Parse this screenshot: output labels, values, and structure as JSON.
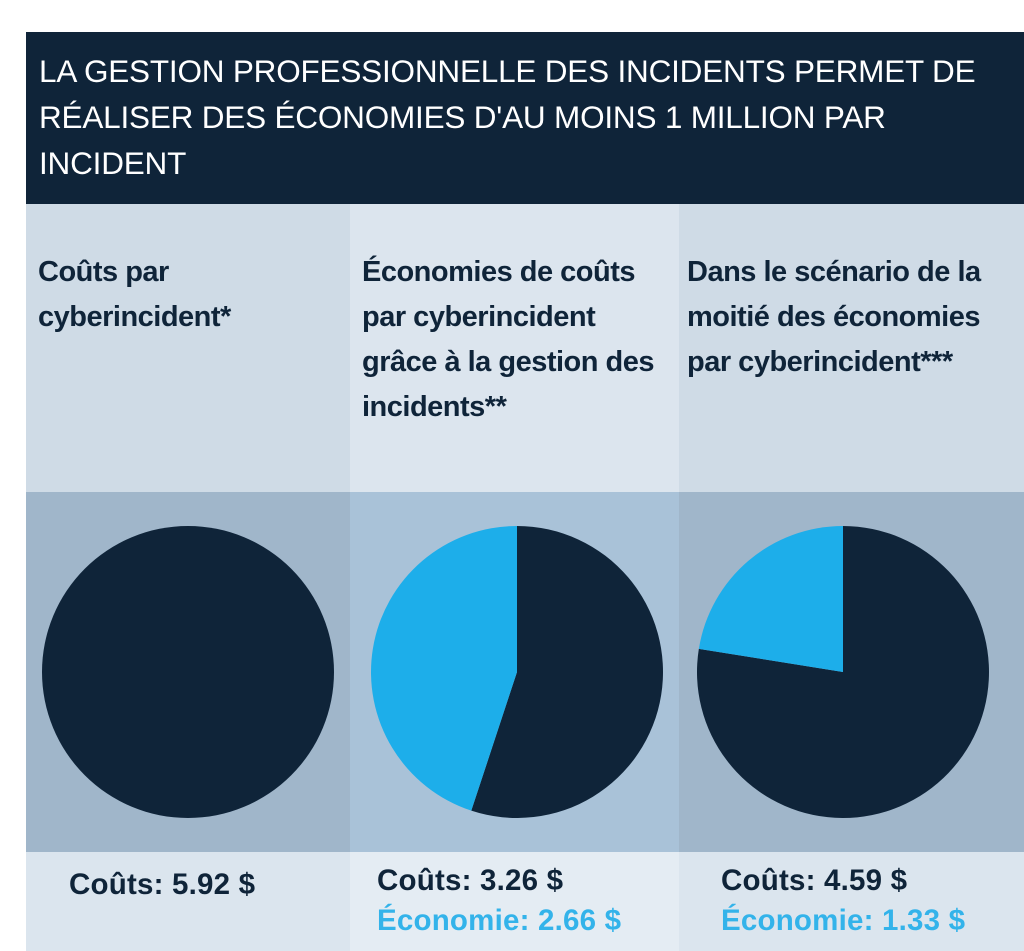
{
  "header": {
    "title": "LA GESTION PROFESSIONNELLE DES INCIDENTS PERMET DE RÉALISER DES ÉCONOMIES D'AU MOINS 1 MILLION PAR INCIDENT"
  },
  "colors": {
    "cost": "#0f2439",
    "savings": "#1daeea",
    "header_bg": "#0f2439"
  },
  "columns": [
    {
      "heading": "Coûts par cyberincident*",
      "cost_label": "Coûts: 5.92 $",
      "savings_label": ""
    },
    {
      "heading": "Économies de coûts par cyberincident grâce à la gestion des incidents**",
      "cost_label": "Coûts: 3.26 $",
      "savings_label": "Économie: 2.66 $"
    },
    {
      "heading": "Dans le scénario de la moitié des économies par cyberincident***",
      "cost_label": "Coûts: 4.59 $",
      "savings_label": "Économie: 1.33 $"
    }
  ],
  "chart_data": [
    {
      "type": "pie",
      "labels": [
        "Coûts"
      ],
      "values": [
        5.92
      ]
    },
    {
      "type": "pie",
      "labels": [
        "Coûts",
        "Économie"
      ],
      "values": [
        3.26,
        2.66
      ]
    },
    {
      "type": "pie",
      "labels": [
        "Coûts",
        "Économie"
      ],
      "values": [
        4.59,
        1.33
      ]
    }
  ]
}
